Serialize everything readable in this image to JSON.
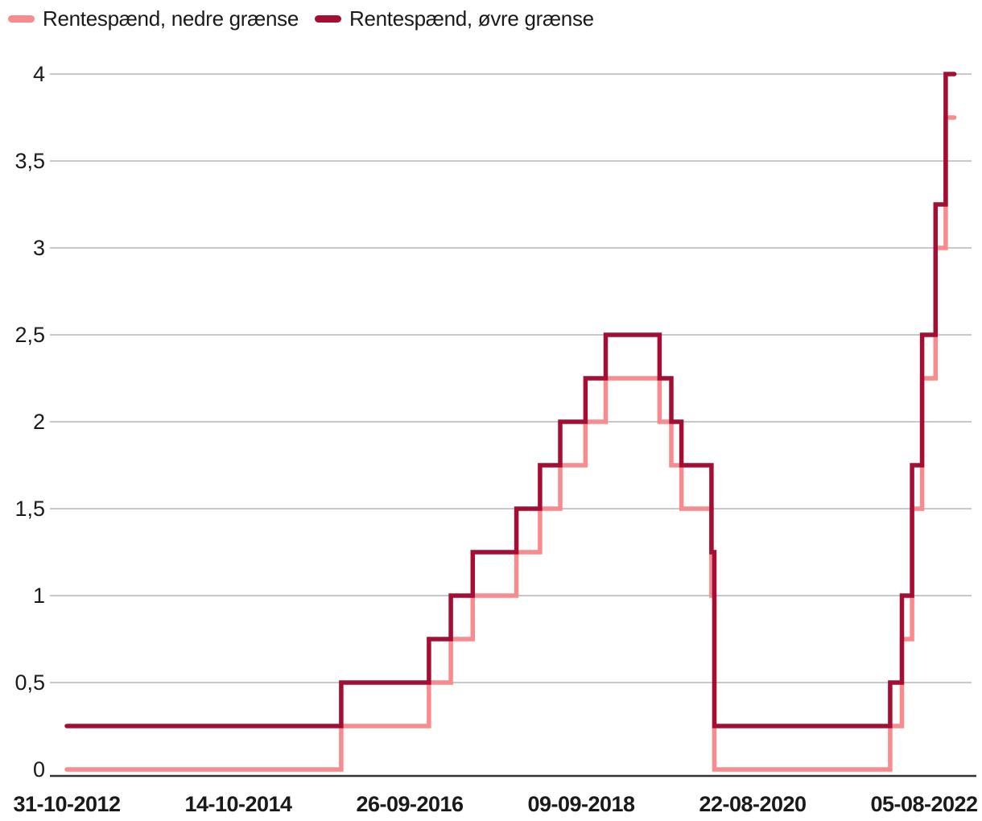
{
  "legend": {
    "items": [
      {
        "label": "Rentespænd, nedre grænse"
      },
      {
        "label": "Rentespænd, øvre grænse"
      }
    ]
  },
  "colors": {
    "lower_bound_pink": "#F98A8D",
    "upper_bound_dark_red": "#A50D33",
    "gridline_gray": "#C8C8C8",
    "axis_black": "#333333",
    "text_color": "#1a1a1a"
  },
  "chart_data": {
    "type": "line",
    "subtype": "step-after",
    "title": "",
    "xlabel": "",
    "ylabel": "",
    "grid": true,
    "legend_position": "top-left",
    "x_axis": {
      "start_date": "31-10-2012",
      "end_date_visible": "09-12-2022",
      "tick_labels": [
        "31-10-2012",
        "14-10-2014",
        "26-09-2016",
        "09-09-2018",
        "22-08-2020",
        "05-08-2022"
      ]
    },
    "y_axis": {
      "ylim": [
        0,
        4
      ],
      "tick_values": [
        0,
        0.5,
        1,
        1.5,
        2,
        2.5,
        3,
        3.5,
        4
      ],
      "tick_labels": [
        "0",
        "0,5",
        "1",
        "1,5",
        "2",
        "2,5",
        "3",
        "3,5",
        "4"
      ]
    },
    "series": [
      {
        "name": "Rentespænd, nedre grænse",
        "color": "#F98A8D",
        "points": [
          [
            "31-10-2012",
            0.0
          ],
          [
            "16-12-2015",
            0.25
          ],
          [
            "15-12-2016",
            0.5
          ],
          [
            "16-03-2017",
            0.75
          ],
          [
            "15-06-2017",
            1.0
          ],
          [
            "14-12-2017",
            1.25
          ],
          [
            "22-03-2018",
            1.5
          ],
          [
            "14-06-2018",
            1.75
          ],
          [
            "27-09-2018",
            2.0
          ],
          [
            "20-12-2018",
            2.25
          ],
          [
            "01-08-2019",
            2.0
          ],
          [
            "19-09-2019",
            1.75
          ],
          [
            "31-10-2019",
            1.5
          ],
          [
            "04-03-2020",
            1.0
          ],
          [
            "16-03-2020",
            0.0
          ],
          [
            "17-03-2022",
            0.25
          ],
          [
            "05-05-2022",
            0.75
          ],
          [
            "16-06-2022",
            1.5
          ],
          [
            "28-07-2022",
            2.25
          ],
          [
            "22-09-2022",
            3.0
          ],
          [
            "03-11-2022",
            3.75
          ]
        ]
      },
      {
        "name": "Rentespænd, øvre grænse",
        "color": "#A50D33",
        "points": [
          [
            "31-10-2012",
            0.25
          ],
          [
            "16-12-2015",
            0.5
          ],
          [
            "15-12-2016",
            0.75
          ],
          [
            "16-03-2017",
            1.0
          ],
          [
            "15-06-2017",
            1.25
          ],
          [
            "14-12-2017",
            1.5
          ],
          [
            "22-03-2018",
            1.75
          ],
          [
            "14-06-2018",
            2.0
          ],
          [
            "27-09-2018",
            2.25
          ],
          [
            "20-12-2018",
            2.5
          ],
          [
            "01-08-2019",
            2.25
          ],
          [
            "19-09-2019",
            2.0
          ],
          [
            "31-10-2019",
            1.75
          ],
          [
            "04-03-2020",
            1.25
          ],
          [
            "16-03-2020",
            0.25
          ],
          [
            "17-03-2022",
            0.5
          ],
          [
            "05-05-2022",
            1.0
          ],
          [
            "16-06-2022",
            1.75
          ],
          [
            "28-07-2022",
            2.5
          ],
          [
            "22-09-2022",
            3.25
          ],
          [
            "03-11-2022",
            4.0
          ]
        ]
      }
    ]
  }
}
